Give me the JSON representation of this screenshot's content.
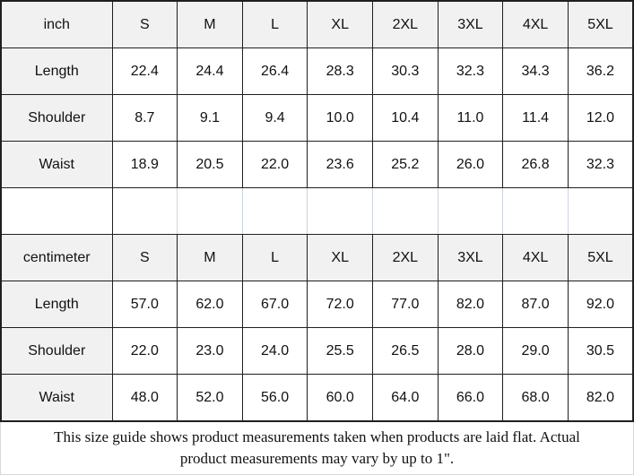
{
  "chart_data": [
    {
      "type": "table",
      "unit": "inch",
      "sizes": [
        "S",
        "M",
        "L",
        "XL",
        "2XL",
        "3XL",
        "4XL",
        "5XL"
      ],
      "rows": [
        {
          "label": "Length",
          "values": [
            "22.4",
            "24.4",
            "26.4",
            "28.3",
            "30.3",
            "32.3",
            "34.3",
            "36.2"
          ]
        },
        {
          "label": "Shoulder",
          "values": [
            "8.7",
            "9.1",
            "9.4",
            "10.0",
            "10.4",
            "11.0",
            "11.4",
            "12.0"
          ]
        },
        {
          "label": "Waist",
          "values": [
            "18.9",
            "20.5",
            "22.0",
            "23.6",
            "25.2",
            "26.0",
            "26.8",
            "32.3"
          ]
        }
      ]
    },
    {
      "type": "table",
      "unit": "centimeter",
      "sizes": [
        "S",
        "M",
        "L",
        "XL",
        "2XL",
        "3XL",
        "4XL",
        "5XL"
      ],
      "rows": [
        {
          "label": "Length",
          "values": [
            "57.0",
            "62.0",
            "67.0",
            "72.0",
            "77.0",
            "82.0",
            "87.0",
            "92.0"
          ]
        },
        {
          "label": "Shoulder",
          "values": [
            "22.0",
            "23.0",
            "24.0",
            "25.5",
            "26.5",
            "28.0",
            "29.0",
            "30.5"
          ]
        },
        {
          "label": "Waist",
          "values": [
            "48.0",
            "52.0",
            "56.0",
            "60.0",
            "64.0",
            "66.0",
            "68.0",
            "82.0"
          ]
        }
      ]
    }
  ],
  "footer": {
    "note": "This size guide shows product measurements taken when products are laid flat. Actual product measurements may vary by up to 1\"."
  },
  "colors": {
    "header_bg": "#f1f1f1",
    "cell_bg": "#ffffff",
    "border": "#1f1f1f",
    "spacer_gridline": "#ccd3e0",
    "footer_border": "#d9d9d9",
    "text": "#111111"
  }
}
